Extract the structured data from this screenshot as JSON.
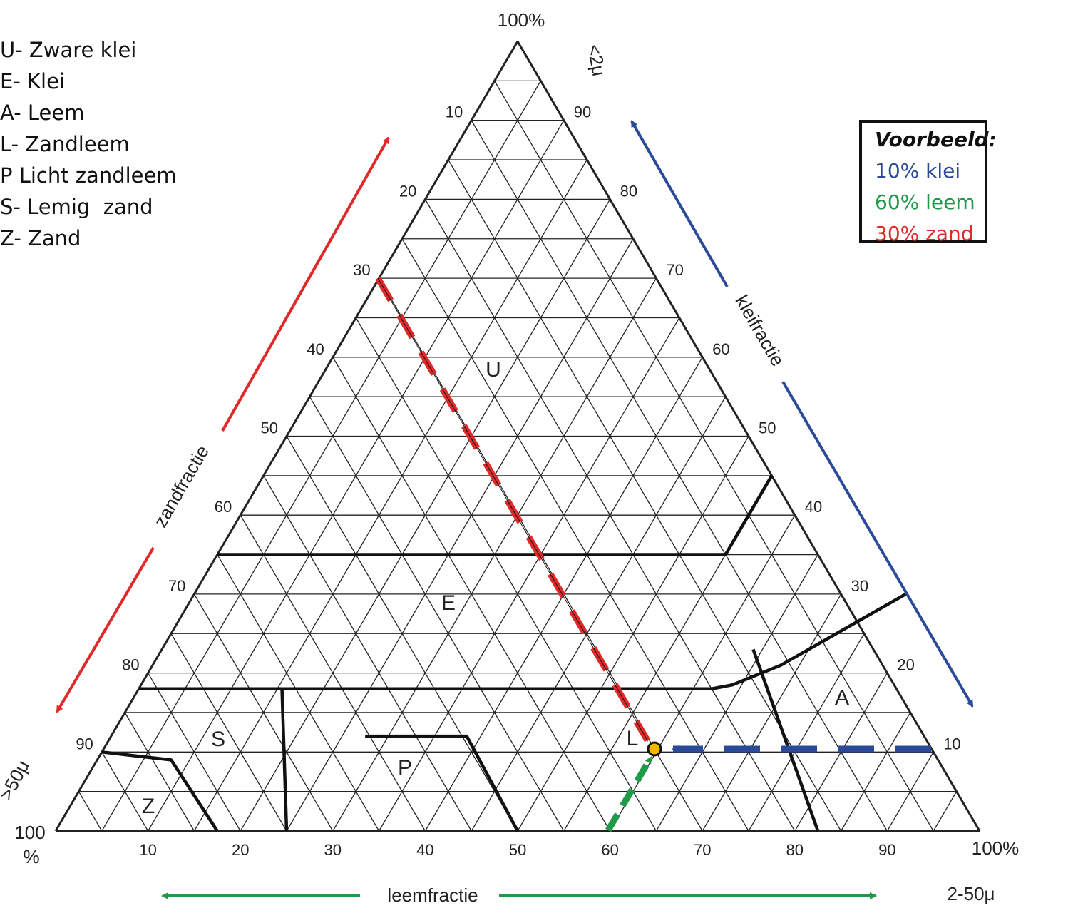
{
  "legend": [
    "U- Zware klei",
    "E- Klei",
    "A- Leem",
    "L- Zandleem",
    "P Licht zandleem",
    "S- Lemig  zand",
    "Z- Zand"
  ],
  "example": {
    "title": "Voorbeeld:",
    "klei": "10% klei",
    "leem": "60% leem",
    "zand": "30% zand"
  },
  "axes": {
    "top_label": "100%",
    "clay_unit": "<2μ",
    "clay_name": "kleifractie",
    "sand_name": "zandfractie",
    "sand_unit": ">50μ",
    "silt_name": "leemfractie",
    "silt_unit": "2-50μ",
    "corner_left": "100",
    "corner_left_unit": "%",
    "corner_right": "100%"
  },
  "ticks": {
    "left": [
      "10",
      "20",
      "30",
      "40",
      "50",
      "60",
      "70",
      "80",
      "90"
    ],
    "right": [
      "90",
      "80",
      "70",
      "60",
      "50",
      "40",
      "30",
      "20",
      "10"
    ],
    "bottom": [
      "10",
      "20",
      "30",
      "40",
      "50",
      "60",
      "70",
      "80",
      "90"
    ]
  },
  "regions": [
    "U",
    "E",
    "A",
    "L",
    "P",
    "S",
    "Z"
  ],
  "colors": {
    "klei": "#2b4a9a",
    "leem": "#1f9a4a",
    "zand": "#e02a2a",
    "point": "#f5b400",
    "lines": "#111111"
  },
  "example_point": {
    "klei": 10,
    "leem": 60,
    "zand": 30
  }
}
